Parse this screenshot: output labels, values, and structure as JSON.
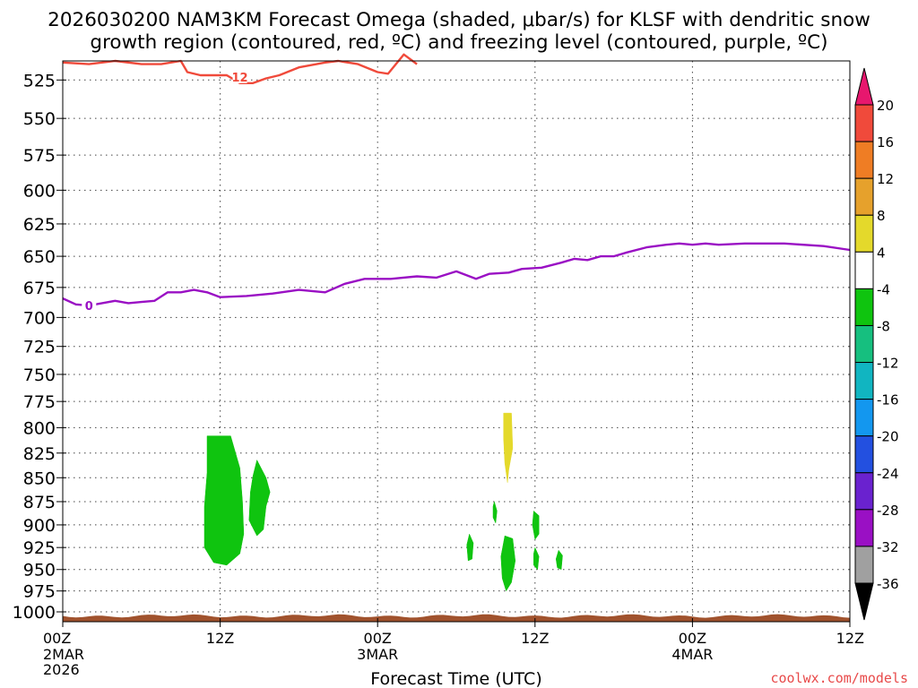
{
  "chart_data": {
    "type": "heatmap",
    "title_lines": [
      "2026030200 NAM3KM Forecast Omega (shaded, μbar/s) for KLSF with dendritic snow",
      "growth region (contoured, red, ºC) and freezing level (contoured, purple, ºC)"
    ],
    "xlabel": "Forecast Time (UTC)",
    "credit": "coolwx.com/models",
    "x_ticks": [
      {
        "label": "00Z",
        "sub": [
          "2MAR",
          "2026"
        ],
        "hour": 0
      },
      {
        "label": "12Z",
        "sub": [],
        "hour": 12
      },
      {
        "label": "00Z",
        "sub": [
          "3MAR"
        ],
        "hour": 24
      },
      {
        "label": "12Z",
        "sub": [],
        "hour": 36
      },
      {
        "label": "00Z",
        "sub": [
          "4MAR"
        ],
        "hour": 48
      },
      {
        "label": "12Z",
        "sub": [],
        "hour": 60
      }
    ],
    "xlim": [
      0,
      60
    ],
    "ylim": [
      1012,
      513
    ],
    "y_ticks": [
      525,
      550,
      575,
      600,
      625,
      650,
      675,
      700,
      725,
      750,
      775,
      800,
      825,
      850,
      875,
      900,
      925,
      950,
      975,
      1000
    ],
    "y_scale": "log-pressure",
    "grid": true,
    "colorbar": {
      "labels": [
        "20",
        "16",
        "12",
        "8",
        "4",
        "-4",
        "-8",
        "-12",
        "-16",
        "-20",
        "-24",
        "-28",
        "-32",
        "-36"
      ],
      "colors": [
        "#e7176e",
        "#f04a3b",
        "#ef7d24",
        "#e6a12c",
        "#e4d92b",
        "#ffffff",
        "#0fc40f",
        "#16bf7f",
        "#11b5c1",
        "#1397ef",
        "#2350e0",
        "#6a22cf",
        "#9a10c4",
        "#a0a0a0",
        "#000000"
      ]
    },
    "contours": [
      {
        "name": "12",
        "color": "#f04a3b",
        "label_at": [
          13.5,
          523
        ],
        "points": [
          [
            0,
            514
          ],
          [
            2,
            515
          ],
          [
            4,
            513
          ],
          [
            6,
            515
          ],
          [
            7.5,
            515
          ],
          [
            9,
            513
          ],
          [
            9.5,
            520
          ],
          [
            10.5,
            522
          ],
          [
            11.5,
            522
          ],
          [
            12.5,
            522
          ],
          [
            13.5,
            527
          ],
          [
            14.5,
            527
          ],
          [
            15.5,
            524
          ],
          [
            16.5,
            522
          ],
          [
            18,
            517
          ],
          [
            20,
            514
          ],
          [
            21,
            513
          ],
          [
            22.5,
            515
          ],
          [
            24,
            520
          ],
          [
            24.8,
            521
          ],
          [
            26,
            509
          ],
          [
            27,
            515
          ]
        ]
      },
      {
        "name": "0",
        "color": "#9a10c4",
        "label_at": [
          2,
          690
        ],
        "points": [
          [
            0,
            684
          ],
          [
            1,
            689
          ],
          [
            2,
            690
          ],
          [
            3,
            688
          ],
          [
            4,
            686
          ],
          [
            5,
            688
          ],
          [
            6,
            687
          ],
          [
            7,
            686
          ],
          [
            8,
            679
          ],
          [
            9,
            679
          ],
          [
            10,
            677
          ],
          [
            11,
            679
          ],
          [
            12,
            683
          ],
          [
            14,
            682
          ],
          [
            16,
            680
          ],
          [
            18,
            677
          ],
          [
            20,
            679
          ],
          [
            21.5,
            672
          ],
          [
            23,
            668
          ],
          [
            25,
            668
          ],
          [
            27,
            666
          ],
          [
            28.5,
            667
          ],
          [
            30,
            662
          ],
          [
            31.5,
            668
          ],
          [
            32.5,
            664
          ],
          [
            34,
            663
          ],
          [
            35,
            660
          ],
          [
            36.5,
            659
          ],
          [
            38,
            655
          ],
          [
            39,
            652
          ],
          [
            40,
            653
          ],
          [
            41,
            650
          ],
          [
            42,
            650
          ],
          [
            43,
            647
          ],
          [
            44.5,
            643
          ],
          [
            46,
            641
          ],
          [
            47,
            640
          ],
          [
            48,
            641
          ],
          [
            49,
            640
          ],
          [
            50,
            641
          ],
          [
            52,
            640
          ],
          [
            55,
            640
          ],
          [
            58,
            642
          ],
          [
            60,
            645
          ]
        ]
      }
    ],
    "shaded_regions": [
      {
        "value": -6,
        "color": "#0fc40f",
        "points": [
          [
            11,
            808
          ],
          [
            12.8,
            808
          ],
          [
            13.5,
            840
          ],
          [
            13.7,
            875
          ],
          [
            13.8,
            910
          ],
          [
            13.5,
            932
          ],
          [
            12.5,
            945
          ],
          [
            11.5,
            942
          ],
          [
            10.8,
            925
          ],
          [
            10.8,
            880
          ],
          [
            11,
            845
          ]
        ]
      },
      {
        "value": -6,
        "color": "#0fc40f",
        "points": [
          [
            14.8,
            832
          ],
          [
            15.5,
            850
          ],
          [
            15.8,
            865
          ],
          [
            15.5,
            880
          ],
          [
            15.3,
            905
          ],
          [
            14.8,
            912
          ],
          [
            14.2,
            895
          ],
          [
            14.3,
            865
          ],
          [
            14.5,
            848
          ]
        ]
      },
      {
        "value": 6,
        "color": "#e4d92b",
        "points": [
          [
            33.6,
            786
          ],
          [
            34.2,
            786
          ],
          [
            34.3,
            820
          ],
          [
            34.0,
            842
          ],
          [
            33.9,
            855
          ],
          [
            33.7,
            835
          ],
          [
            33.6,
            810
          ]
        ]
      },
      {
        "value": -6,
        "color": "#0fc40f",
        "points": [
          [
            31.0,
            910
          ],
          [
            31.3,
            920
          ],
          [
            31.2,
            938
          ],
          [
            30.9,
            940
          ],
          [
            30.8,
            922
          ]
        ]
      },
      {
        "value": -6,
        "color": "#0fc40f",
        "points": [
          [
            32.9,
            875
          ],
          [
            33.1,
            885
          ],
          [
            33.0,
            898
          ],
          [
            32.8,
            892
          ],
          [
            32.8,
            880
          ]
        ]
      },
      {
        "value": -6,
        "color": "#0fc40f",
        "points": [
          [
            33.7,
            912
          ],
          [
            34.3,
            915
          ],
          [
            34.5,
            940
          ],
          [
            34.2,
            965
          ],
          [
            33.8,
            975
          ],
          [
            33.5,
            960
          ],
          [
            33.4,
            935
          ]
        ]
      },
      {
        "value": -6,
        "color": "#0fc40f",
        "points": [
          [
            35.9,
            885
          ],
          [
            36.3,
            890
          ],
          [
            36.3,
            910
          ],
          [
            36.0,
            916
          ],
          [
            35.8,
            900
          ]
        ]
      },
      {
        "value": -6,
        "color": "#0fc40f",
        "points": [
          [
            36.0,
            925
          ],
          [
            36.3,
            935
          ],
          [
            36.2,
            950
          ],
          [
            35.9,
            945
          ],
          [
            35.9,
            932
          ]
        ]
      },
      {
        "value": -6,
        "color": "#0fc40f",
        "points": [
          [
            37.8,
            928
          ],
          [
            38.1,
            934
          ],
          [
            38.0,
            950
          ],
          [
            37.7,
            948
          ],
          [
            37.6,
            938
          ]
        ]
      }
    ],
    "terrain": {
      "color": "#a0522d",
      "top_pressure": 1005
    }
  }
}
